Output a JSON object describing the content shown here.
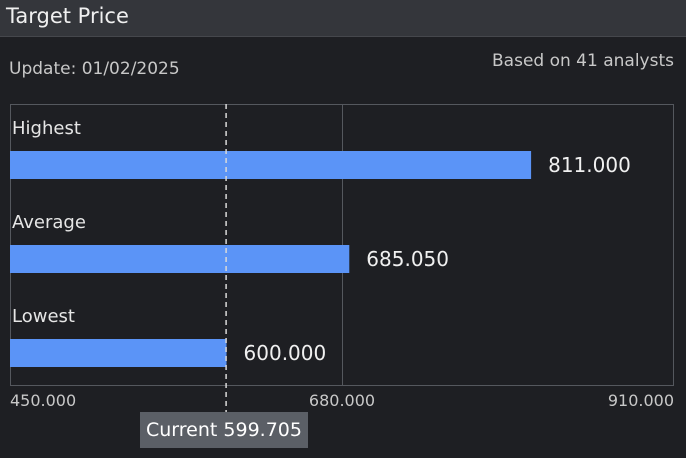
{
  "header": {
    "title": "Target Price"
  },
  "update_text": "Update: 01/02/2025",
  "based_text": "Based on 41 analysts",
  "current_label": "Current 599.705",
  "colors": {
    "bar": "#5b94f7",
    "grid": "#55585e",
    "marker": "#d9d9d9",
    "text": "#e6e6e6"
  },
  "chart_data": {
    "type": "bar",
    "orientation": "horizontal",
    "categories": [
      "Highest",
      "Average",
      "Lowest"
    ],
    "values": [
      811.0,
      685.05,
      600.0
    ],
    "value_labels": [
      "811.000",
      "685.050",
      "600.000"
    ],
    "xlim": [
      450,
      910
    ],
    "xticks": [
      450,
      680,
      910
    ],
    "xtick_labels": [
      "450.000",
      "680.000",
      "910.000"
    ],
    "current": 599.705,
    "grid": true
  }
}
